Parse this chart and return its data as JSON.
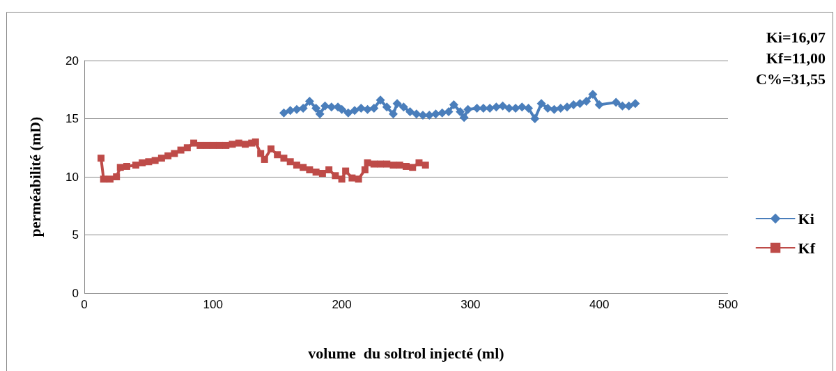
{
  "chart_data": {
    "type": "line",
    "xlabel": "volume  du soltrol injecté (ml)",
    "ylabel": "perméabilité (mD)",
    "xlim": [
      0,
      500
    ],
    "xticks": [
      0,
      100,
      200,
      300,
      400,
      500
    ],
    "ylim": [
      0,
      20
    ],
    "yticks": [
      0,
      5,
      10,
      15,
      20
    ],
    "grid": "y",
    "legend": "right",
    "line_style": "solid",
    "annotations": [
      "Ki=16,07",
      "Kf=11,00",
      "C%=31,55"
    ],
    "series": [
      {
        "name": "Ki",
        "color": "#4a7ebb",
        "marker": "diamond",
        "x": [
          155,
          160,
          165,
          170,
          175,
          180,
          183,
          187,
          192,
          197,
          200,
          205,
          210,
          215,
          220,
          225,
          230,
          235,
          240,
          243,
          248,
          253,
          258,
          263,
          268,
          273,
          278,
          283,
          287,
          292,
          295,
          298,
          305,
          310,
          315,
          320,
          325,
          330,
          335,
          340,
          345,
          350,
          355,
          360,
          365,
          370,
          375,
          380,
          385,
          390,
          395,
          400,
          413,
          418,
          423,
          428
        ],
        "values": [
          15.5,
          15.7,
          15.8,
          15.9,
          16.5,
          15.9,
          15.4,
          16.1,
          16.0,
          16.0,
          15.8,
          15.5,
          15.7,
          15.9,
          15.8,
          15.9,
          16.6,
          16.0,
          15.4,
          16.3,
          16.0,
          15.6,
          15.4,
          15.3,
          15.3,
          15.4,
          15.5,
          15.6,
          16.2,
          15.6,
          15.1,
          15.8,
          15.9,
          15.9,
          15.9,
          16.0,
          16.1,
          15.9,
          15.9,
          16.0,
          15.9,
          15.0,
          16.3,
          15.9,
          15.8,
          15.9,
          16.0,
          16.2,
          16.3,
          16.5,
          17.1,
          16.2,
          16.4,
          16.1,
          16.1,
          16.3
        ]
      },
      {
        "name": "Kf",
        "color": "#be4b48",
        "marker": "square",
        "x": [
          13,
          15,
          20,
          25,
          28,
          33,
          40,
          45,
          50,
          55,
          60,
          65,
          70,
          75,
          80,
          85,
          90,
          95,
          100,
          105,
          110,
          115,
          120,
          125,
          130,
          133,
          137,
          140,
          145,
          150,
          155,
          160,
          165,
          170,
          175,
          180,
          185,
          190,
          195,
          200,
          203,
          208,
          213,
          218,
          220,
          225,
          230,
          235,
          240,
          245,
          250,
          255,
          260,
          265
        ],
        "values": [
          11.6,
          9.8,
          9.8,
          10.0,
          10.8,
          10.9,
          11.0,
          11.2,
          11.3,
          11.4,
          11.6,
          11.8,
          12.0,
          12.3,
          12.5,
          12.9,
          12.7,
          12.7,
          12.7,
          12.7,
          12.7,
          12.8,
          12.9,
          12.8,
          12.9,
          13.0,
          12.0,
          11.5,
          12.4,
          11.9,
          11.6,
          11.3,
          11.0,
          10.8,
          10.6,
          10.4,
          10.3,
          10.6,
          10.1,
          9.8,
          10.5,
          9.9,
          9.8,
          10.6,
          11.2,
          11.1,
          11.1,
          11.1,
          11.0,
          11.0,
          10.9,
          10.8,
          11.2,
          11.0
        ]
      }
    ]
  }
}
